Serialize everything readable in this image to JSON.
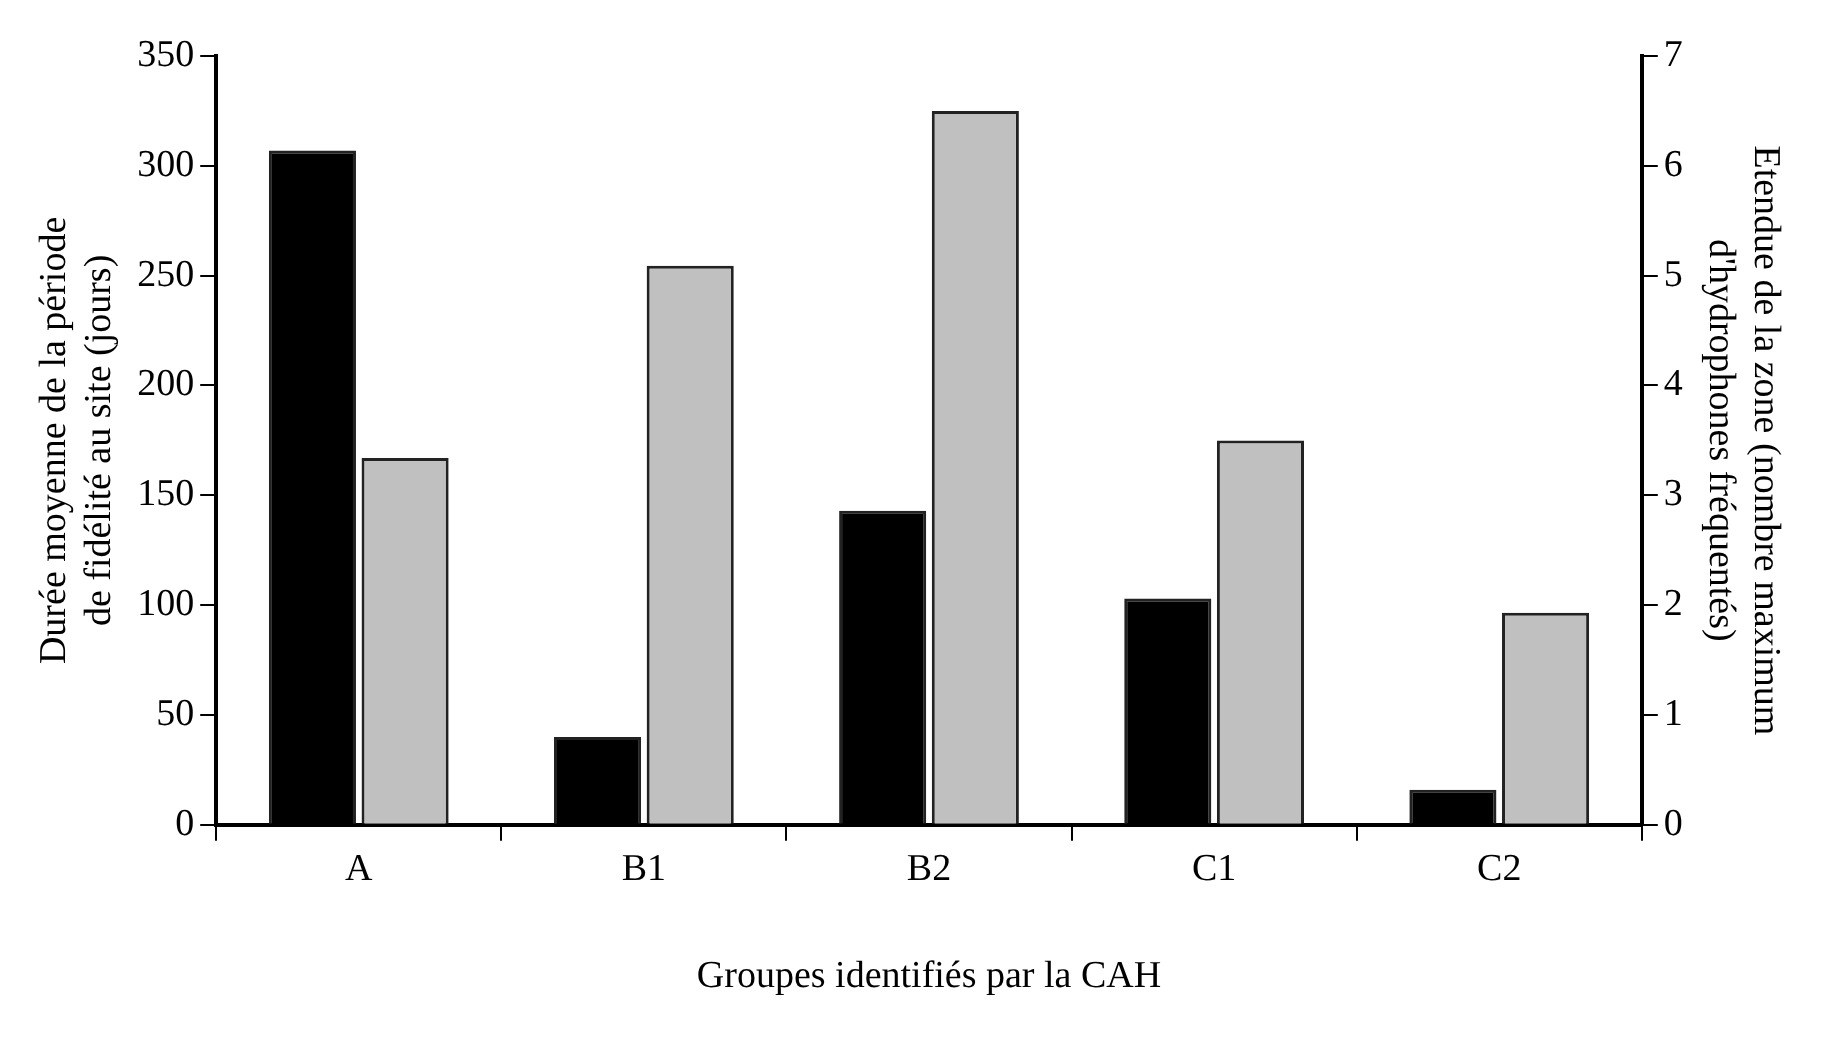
{
  "chart_data": {
    "type": "bar",
    "xlabel": "Groupes identifiés par la CAH",
    "ylabel": "Durée moyenne de la période de fidélité au site (jours)",
    "y2label": "Etendue de la zone (nombre maximum d'hydrophones fréquentés)",
    "categories": [
      "A",
      "B1",
      "B2",
      "C1",
      "C2"
    ],
    "series": [
      {
        "color": "#000000",
        "values": [
          307,
          40,
          143,
          103,
          16
        ]
      },
      {
        "color": "#c0c0c0",
        "axis": "y2",
        "values": [
          3.34,
          5.09,
          6.5,
          3.5,
          1.93
        ]
      }
    ],
    "ylim": [
      0,
      350
    ],
    "yticks": [
      0,
      50,
      100,
      150,
      200,
      250,
      300,
      350
    ],
    "y2lim": [
      0,
      7
    ],
    "y2ticks": [
      0,
      1,
      2,
      3,
      4,
      5,
      6,
      7
    ],
    "grid": false,
    "legend": false
  }
}
